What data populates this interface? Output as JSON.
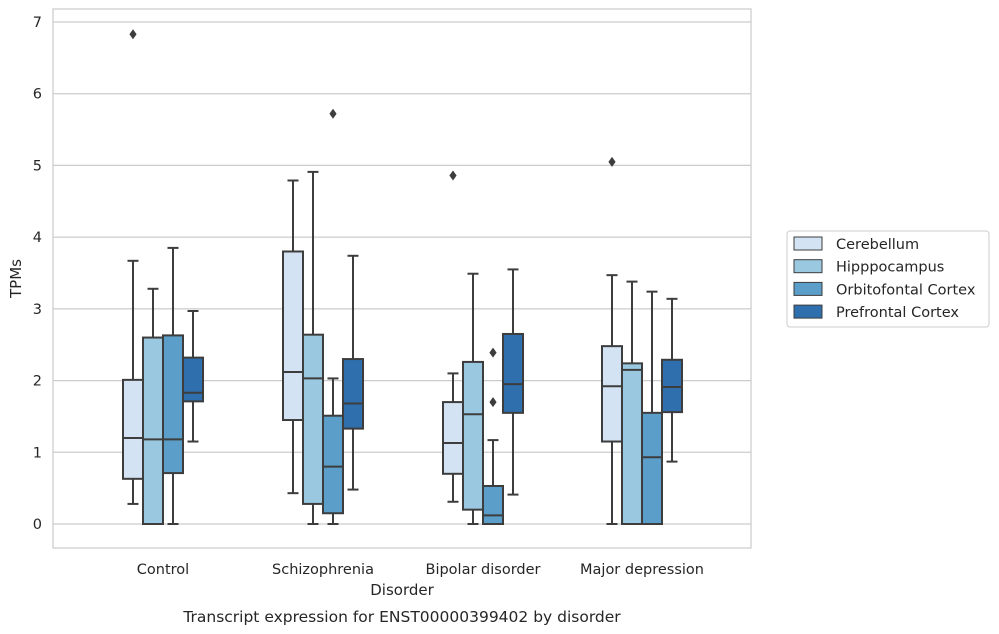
{
  "chart_data": {
    "type": "boxplot",
    "xlabel": "Disorder",
    "ylabel": "TPMs",
    "caption": "Transcript expression for ENST00000399402 by disorder",
    "ylim": [
      -0.33,
      7.18
    ],
    "yticks": [
      0,
      1,
      2,
      3,
      4,
      5,
      6,
      7
    ],
    "grid": "horizontal",
    "legend_position": "right",
    "categories": [
      "Control",
      "Schizophrenia",
      "Bipolar disorder",
      "Major depression"
    ],
    "series": [
      {
        "name": "Cerebellum",
        "color": "#d3e3f3",
        "boxes": [
          {
            "whislo": 0.28,
            "q1": 0.63,
            "med": 1.2,
            "q3": 2.01,
            "whishi": 3.67,
            "fliers": [
              6.83
            ]
          },
          {
            "whislo": 0.43,
            "q1": 1.45,
            "med": 2.12,
            "q3": 3.8,
            "whishi": 4.79,
            "fliers": []
          },
          {
            "whislo": 0.31,
            "q1": 0.7,
            "med": 1.13,
            "q3": 1.7,
            "whishi": 2.1,
            "fliers": [
              4.86
            ]
          },
          {
            "whislo": 0.0,
            "q1": 1.15,
            "med": 1.92,
            "q3": 2.48,
            "whishi": 3.47,
            "fliers": [
              5.05
            ]
          }
        ]
      },
      {
        "name": "Hipppocampus",
        "color": "#9ac8e0",
        "boxes": [
          {
            "whislo": 0.0,
            "q1": 0.0,
            "med": 1.18,
            "q3": 2.6,
            "whishi": 3.28,
            "fliers": []
          },
          {
            "whislo": 0.0,
            "q1": 0.28,
            "med": 2.03,
            "q3": 2.64,
            "whishi": 4.91,
            "fliers": []
          },
          {
            "whislo": 0.0,
            "q1": 0.2,
            "med": 1.53,
            "q3": 2.26,
            "whishi": 3.49,
            "fliers": []
          },
          {
            "whislo": 0.0,
            "q1": 0.0,
            "med": 2.15,
            "q3": 2.24,
            "whishi": 3.38,
            "fliers": []
          }
        ]
      },
      {
        "name": "Orbitofontal Cortex",
        "color": "#5a9ec9",
        "boxes": [
          {
            "whislo": 0.0,
            "q1": 0.71,
            "med": 1.18,
            "q3": 2.63,
            "whishi": 3.85,
            "fliers": []
          },
          {
            "whislo": 0.0,
            "q1": 0.15,
            "med": 0.8,
            "q3": 1.51,
            "whishi": 2.03,
            "fliers": [
              5.72
            ]
          },
          {
            "whislo": 0.0,
            "q1": 0.0,
            "med": 0.12,
            "q3": 0.53,
            "whishi": 1.17,
            "fliers": [
              1.7,
              2.39
            ]
          },
          {
            "whislo": 0.0,
            "q1": 0.0,
            "med": 0.93,
            "q3": 1.55,
            "whishi": 3.24,
            "fliers": []
          }
        ]
      },
      {
        "name": "Prefrontal Cortex",
        "color": "#2f6fad",
        "boxes": [
          {
            "whislo": 1.15,
            "q1": 1.71,
            "med": 1.83,
            "q3": 2.32,
            "whishi": 2.97,
            "fliers": []
          },
          {
            "whislo": 0.48,
            "q1": 1.33,
            "med": 1.68,
            "q3": 2.3,
            "whishi": 3.74,
            "fliers": []
          },
          {
            "whislo": 0.41,
            "q1": 1.55,
            "med": 1.95,
            "q3": 2.65,
            "whishi": 3.55,
            "fliers": []
          },
          {
            "whislo": 0.87,
            "q1": 1.56,
            "med": 1.91,
            "q3": 2.29,
            "whishi": 3.14,
            "fliers": []
          }
        ]
      }
    ]
  }
}
